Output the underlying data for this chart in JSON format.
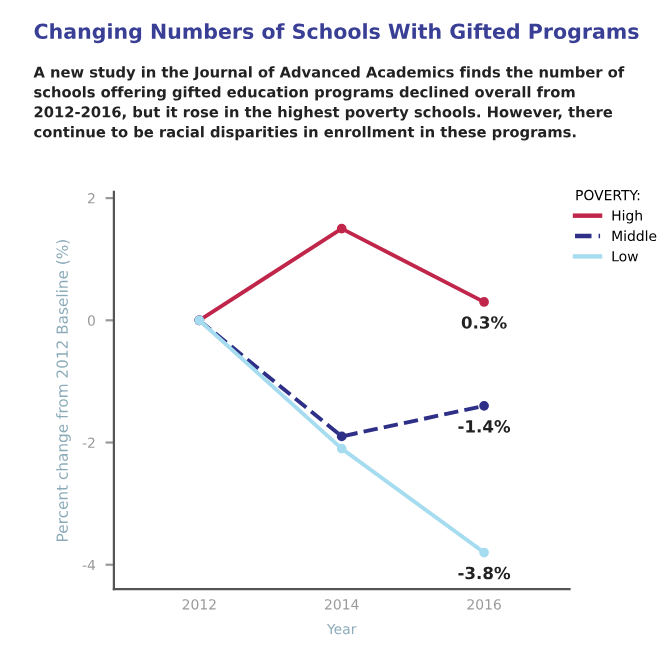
{
  "chart_data": {
    "type": "line",
    "title": "Changing Numbers of Schools With Gifted Programs",
    "subtitle": "A new study in the Journal of Advanced Academics finds the number of schools offering gifted education programs declined overall from 2012-2016, but it rose in the highest poverty schools. However, there continue to be racial disparities in enrollment in these programs.",
    "xlabel": "Year",
    "ylabel": "Percent change from 2012 Baseline (%)",
    "legend_title": "POVERTY:",
    "x": [
      2012,
      2014,
      2016
    ],
    "series": [
      {
        "name": "High",
        "color": "#c0254a",
        "values": [
          0,
          1.5,
          0.3
        ],
        "value_labels": [
          null,
          null,
          "0.3%"
        ]
      },
      {
        "name": "Middle",
        "color": "#2e2f86",
        "values": [
          0,
          -1.9,
          -1.4
        ],
        "value_labels": [
          null,
          null,
          "-1.4%"
        ],
        "line_style": "dashed"
      },
      {
        "name": "Low",
        "color": "#a6dcef",
        "values": [
          0,
          -2.1,
          -3.8
        ],
        "value_labels": [
          null,
          null,
          "-3.8%"
        ]
      }
    ],
    "xlim": [
      2010.8,
      2017.2
    ],
    "ylim": [
      -4.4,
      2.1
    ],
    "xticks": [
      2012,
      2014,
      2016
    ],
    "yticks": [
      -4,
      -2,
      0,
      2
    ],
    "grid": false,
    "legend": "top right",
    "marker": "circle",
    "line_style": "solid"
  }
}
